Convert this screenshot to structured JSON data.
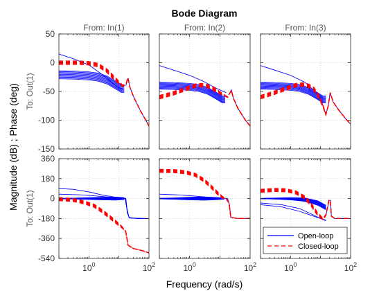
{
  "chart_data": {
    "type": "line",
    "title": "Bode Diagram",
    "xlabel": "Frequency  (rad/s)",
    "ylabel": "Magnitude (dB) ; Phase (deg)",
    "xscale": "log",
    "xlim": [
      0.1,
      100
    ],
    "x_ticks": [
      1,
      100
    ],
    "x_tick_labels": [
      {
        "base": "10",
        "exp": "0"
      },
      {
        "base": "10",
        "exp": "2"
      }
    ],
    "grid": true,
    "columns": [
      "From: In(1)",
      "From: In(2)",
      "From: In(3)"
    ],
    "row_label": "To: Out(1)",
    "magnitude": {
      "ylim": [
        -150,
        50
      ],
      "ticks": [
        50,
        0,
        -50,
        -100,
        -150
      ],
      "tick_labels": [
        "50",
        "0",
        "-50",
        "-100",
        "-150"
      ]
    },
    "phase": {
      "ylim": [
        -540,
        360
      ],
      "ticks": [
        360,
        180,
        0,
        -180,
        -360,
        -540
      ],
      "tick_labels": [
        "360",
        "180",
        "0",
        "-180",
        "-360",
        "-540"
      ]
    },
    "legend": {
      "position": "lower-right of bottom-right panel",
      "entries": [
        {
          "label": "Open-loop",
          "color": "#0000ff",
          "style": "solid"
        },
        {
          "label": "Closed-loop",
          "color": "#ff0000",
          "style": "dashed"
        }
      ]
    },
    "panels": [
      {
        "row": "magnitude",
        "col": 0,
        "open": {
          "fam": {
            "base_lo": -28,
            "base_hi": -14,
            "count": 10
          },
          "single": [
            {
              "x": 0.1,
              "y": 15
            },
            {
              "x": 0.3,
              "y": 7
            },
            {
              "x": 1,
              "y": -4
            },
            {
              "x": 3,
              "y": -22
            },
            {
              "x": 6,
              "y": -35
            },
            {
              "x": 10,
              "y": -44
            },
            {
              "x": 14,
              "y": -46
            }
          ],
          "tail": [
            {
              "x": 17,
              "y": -40
            },
            {
              "x": 20,
              "y": -27
            },
            {
              "x": 23,
              "y": -42
            },
            {
              "x": 30,
              "y": -58
            },
            {
              "x": 50,
              "y": -82
            },
            {
              "x": 100,
              "y": -110
            }
          ]
        },
        "closed": [
          {
            "x": 0.1,
            "y": 0
          },
          {
            "x": 0.5,
            "y": 0
          },
          {
            "x": 1,
            "y": -1
          },
          {
            "x": 2,
            "y": -4
          },
          {
            "x": 4,
            "y": -14
          },
          {
            "x": 8,
            "y": -30
          },
          {
            "x": 13,
            "y": -40
          },
          {
            "x": 17,
            "y": -38
          },
          {
            "x": 20,
            "y": -26
          },
          {
            "x": 23,
            "y": -42
          },
          {
            "x": 30,
            "y": -58
          },
          {
            "x": 50,
            "y": -82
          },
          {
            "x": 100,
            "y": -110
          }
        ]
      },
      {
        "row": "magnitude",
        "col": 1,
        "open": {
          "fam": {
            "base_lo": -46,
            "base_hi": -34,
            "count": 10
          },
          "single": [
            {
              "x": 0.1,
              "y": -5
            },
            {
              "x": 0.3,
              "y": -13
            },
            {
              "x": 1,
              "y": -22
            },
            {
              "x": 3,
              "y": -33
            },
            {
              "x": 8,
              "y": -45
            },
            {
              "x": 16,
              "y": -52
            }
          ],
          "tail": [
            {
              "x": 20,
              "y": -56
            },
            {
              "x": 24,
              "y": -47
            },
            {
              "x": 28,
              "y": -62
            },
            {
              "x": 40,
              "y": -80
            },
            {
              "x": 70,
              "y": -100
            },
            {
              "x": 100,
              "y": -110
            }
          ]
        },
        "closed": [
          {
            "x": 0.1,
            "y": -60
          },
          {
            "x": 0.3,
            "y": -53
          },
          {
            "x": 0.8,
            "y": -45
          },
          {
            "x": 1.5,
            "y": -40
          },
          {
            "x": 2.5,
            "y": -39
          },
          {
            "x": 4,
            "y": -41
          },
          {
            "x": 7,
            "y": -47
          },
          {
            "x": 12,
            "y": -55
          },
          {
            "x": 18,
            "y": -60
          },
          {
            "x": 24,
            "y": -48
          },
          {
            "x": 28,
            "y": -62
          },
          {
            "x": 40,
            "y": -80
          },
          {
            "x": 70,
            "y": -100
          },
          {
            "x": 100,
            "y": -110
          }
        ]
      },
      {
        "row": "magnitude",
        "col": 2,
        "open": {
          "fam": {
            "base_lo": -46,
            "base_hi": -34,
            "count": 10
          },
          "single": [
            {
              "x": 0.1,
              "y": -5
            },
            {
              "x": 0.3,
              "y": -13
            },
            {
              "x": 1,
              "y": -22
            },
            {
              "x": 3,
              "y": -34
            },
            {
              "x": 6,
              "y": -48
            },
            {
              "x": 10,
              "y": -62
            },
            {
              "x": 13,
              "y": -80
            },
            {
              "x": 15,
              "y": -90
            }
          ],
          "tail": [
            {
              "x": 16,
              "y": -85
            },
            {
              "x": 18,
              "y": -75
            },
            {
              "x": 20,
              "y": -58
            },
            {
              "x": 21,
              "y": -52
            },
            {
              "x": 22,
              "y": -56
            },
            {
              "x": 26,
              "y": -68
            },
            {
              "x": 40,
              "y": -82
            },
            {
              "x": 70,
              "y": -98
            },
            {
              "x": 100,
              "y": -107
            }
          ]
        },
        "closed": [
          {
            "x": 0.1,
            "y": -60
          },
          {
            "x": 0.3,
            "y": -52
          },
          {
            "x": 0.8,
            "y": -44
          },
          {
            "x": 1.5,
            "y": -39
          },
          {
            "x": 2.5,
            "y": -38
          },
          {
            "x": 4,
            "y": -40
          },
          {
            "x": 6,
            "y": -46
          },
          {
            "x": 9,
            "y": -60
          },
          {
            "x": 13,
            "y": -80
          },
          {
            "x": 15,
            "y": -90
          },
          {
            "x": 18,
            "y": -75
          },
          {
            "x": 21,
            "y": -52
          },
          {
            "x": 26,
            "y": -68
          },
          {
            "x": 40,
            "y": -82
          },
          {
            "x": 70,
            "y": -98
          },
          {
            "x": 100,
            "y": -107
          }
        ]
      },
      {
        "row": "phase",
        "col": 0,
        "open": {
          "single": [
            {
              "x": 0.1,
              "y": 90
            },
            {
              "x": 0.3,
              "y": 84
            },
            {
              "x": 1,
              "y": 60
            },
            {
              "x": 3,
              "y": 30
            },
            {
              "x": 8,
              "y": 12
            },
            {
              "x": 14,
              "y": 5
            },
            {
              "x": 17,
              "y": -5
            },
            {
              "x": 19,
              "y": -130
            },
            {
              "x": 22,
              "y": -170
            },
            {
              "x": 40,
              "y": -180
            },
            {
              "x": 100,
              "y": -180
            }
          ],
          "single2": [
            {
              "x": 0.1,
              "y": 40
            },
            {
              "x": 0.5,
              "y": 34
            },
            {
              "x": 2,
              "y": 22
            },
            {
              "x": 8,
              "y": 8
            },
            {
              "x": 16,
              "y": 3
            },
            {
              "x": 18,
              "y": -80
            },
            {
              "x": 22,
              "y": -175
            },
            {
              "x": 100,
              "y": -180
            }
          ],
          "wedge_lo": [
            {
              "x": 0.1,
              "y": -2
            },
            {
              "x": 0.3,
              "y": -4
            },
            {
              "x": 1,
              "y": -8
            },
            {
              "x": 3,
              "y": -12
            },
            {
              "x": 8,
              "y": -14
            },
            {
              "x": 15,
              "y": -8
            }
          ],
          "wedge_hi": [
            {
              "x": 0.1,
              "y": 2
            },
            {
              "x": 0.3,
              "y": 4
            },
            {
              "x": 1,
              "y": 8
            },
            {
              "x": 3,
              "y": 12
            },
            {
              "x": 8,
              "y": 14
            },
            {
              "x": 15,
              "y": 8
            }
          ],
          "wedge_count": 10,
          "tail": [
            {
              "x": 15,
              "y": 5
            },
            {
              "x": 17,
              "y": 0
            },
            {
              "x": 19,
              "y": -120
            },
            {
              "x": 22,
              "y": -175
            },
            {
              "x": 40,
              "y": -180
            },
            {
              "x": 100,
              "y": -180
            }
          ]
        },
        "closed": [
          {
            "x": 0.1,
            "y": -5
          },
          {
            "x": 0.3,
            "y": -12
          },
          {
            "x": 0.7,
            "y": -35
          },
          {
            "x": 1.5,
            "y": -65
          },
          {
            "x": 3,
            "y": -120
          },
          {
            "x": 6,
            "y": -185
          },
          {
            "x": 10,
            "y": -235
          },
          {
            "x": 14,
            "y": -270
          },
          {
            "x": 17,
            "y": -300
          },
          {
            "x": 20,
            "y": -420
          },
          {
            "x": 30,
            "y": -450
          },
          {
            "x": 60,
            "y": -470
          },
          {
            "x": 100,
            "y": -490
          }
        ]
      },
      {
        "row": "phase",
        "col": 1,
        "open": {
          "single": [
            {
              "x": 0.1,
              "y": 40
            },
            {
              "x": 0.5,
              "y": 32
            },
            {
              "x": 2,
              "y": 20
            },
            {
              "x": 6,
              "y": 8
            },
            {
              "x": 12,
              "y": 2
            }
          ],
          "wedge_lo": [
            {
              "x": 0.1,
              "y": -3
            },
            {
              "x": 0.3,
              "y": -6
            },
            {
              "x": 1,
              "y": -12
            },
            {
              "x": 3,
              "y": -15
            },
            {
              "x": 8,
              "y": -10
            },
            {
              "x": 14,
              "y": -5
            }
          ],
          "wedge_hi": [
            {
              "x": 0.1,
              "y": 3
            },
            {
              "x": 0.3,
              "y": 6
            },
            {
              "x": 1,
              "y": 12
            },
            {
              "x": 3,
              "y": 15
            },
            {
              "x": 8,
              "y": 10
            },
            {
              "x": 14,
              "y": 5
            }
          ],
          "wedge_count": 10,
          "tail": [
            {
              "x": 14,
              "y": 3
            },
            {
              "x": 18,
              "y": 0
            },
            {
              "x": 21,
              "y": -60
            },
            {
              "x": 23,
              "y": -170
            },
            {
              "x": 40,
              "y": -180
            },
            {
              "x": 100,
              "y": -180
            }
          ]
        },
        "closed": [
          {
            "x": 0.1,
            "y": 250
          },
          {
            "x": 0.3,
            "y": 248
          },
          {
            "x": 0.7,
            "y": 238
          },
          {
            "x": 1.5,
            "y": 215
          },
          {
            "x": 3,
            "y": 165
          },
          {
            "x": 5,
            "y": 110
          },
          {
            "x": 8,
            "y": 55
          },
          {
            "x": 12,
            "y": 12
          },
          {
            "x": 16,
            "y": 0
          },
          {
            "x": 20,
            "y": -40
          },
          {
            "x": 23,
            "y": -170
          },
          {
            "x": 40,
            "y": -180
          },
          {
            "x": 100,
            "y": -180
          }
        ]
      },
      {
        "row": "phase",
        "col": 2,
        "open": {
          "single": [
            {
              "x": 0.1,
              "y": -40
            },
            {
              "x": 0.5,
              "y": -55
            },
            {
              "x": 2,
              "y": -90
            },
            {
              "x": 5,
              "y": -140
            },
            {
              "x": 10,
              "y": -180
            },
            {
              "x": 15,
              "y": -200
            }
          ],
          "single2": [
            {
              "x": 0.1,
              "y": -55
            },
            {
              "x": 0.5,
              "y": -75
            },
            {
              "x": 2,
              "y": -115
            },
            {
              "x": 6,
              "y": -160
            },
            {
              "x": 15,
              "y": -195
            }
          ],
          "wedge_lo": [
            {
              "x": 0.1,
              "y": -2
            },
            {
              "x": 0.3,
              "y": -5
            },
            {
              "x": 1,
              "y": -12
            },
            {
              "x": 3,
              "y": -25
            },
            {
              "x": 8,
              "y": -60
            },
            {
              "x": 15,
              "y": -100
            }
          ],
          "wedge_hi": [
            {
              "x": 0.1,
              "y": 2
            },
            {
              "x": 0.3,
              "y": 5
            },
            {
              "x": 1,
              "y": 8
            },
            {
              "x": 3,
              "y": 5
            },
            {
              "x": 8,
              "y": -20
            },
            {
              "x": 15,
              "y": -60
            }
          ],
          "wedge_count": 10,
          "tail": [
            {
              "x": 15,
              "y": -150
            },
            {
              "x": 17,
              "y": -90
            },
            {
              "x": 19,
              "y": -20
            },
            {
              "x": 21,
              "y": -15
            },
            {
              "x": 23,
              "y": -160
            },
            {
              "x": 30,
              "y": -180
            },
            {
              "x": 100,
              "y": -180
            }
          ]
        },
        "closed": [
          {
            "x": 0.1,
            "y": 70
          },
          {
            "x": 0.3,
            "y": 78
          },
          {
            "x": 0.7,
            "y": 75
          },
          {
            "x": 1.5,
            "y": 55
          },
          {
            "x": 3,
            "y": 10
          },
          {
            "x": 5,
            "y": -60
          },
          {
            "x": 8,
            "y": -140
          },
          {
            "x": 12,
            "y": -185
          },
          {
            "x": 15,
            "y": -150
          },
          {
            "x": 17,
            "y": -80
          },
          {
            "x": 19,
            "y": -15
          },
          {
            "x": 21,
            "y": -15
          },
          {
            "x": 23,
            "y": -160
          },
          {
            "x": 30,
            "y": -180
          },
          {
            "x": 100,
            "y": -180
          }
        ]
      }
    ]
  }
}
